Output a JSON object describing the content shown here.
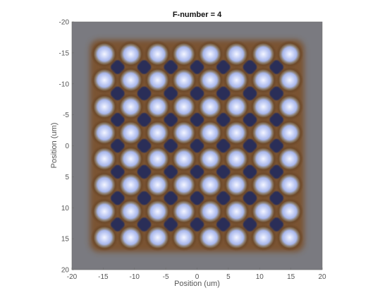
{
  "chart_data": {
    "type": "heatmap",
    "title": "F-number = 4",
    "xlabel": "Position (um)",
    "ylabel": "Position (um)",
    "xlim": [
      -20,
      20
    ],
    "ylim": [
      -20,
      20
    ],
    "y_direction": "reversed",
    "x_ticks": [
      "-20",
      "-15",
      "-10",
      "-5",
      "0",
      "5",
      "10",
      "15",
      "20"
    ],
    "y_ticks": [
      "-20",
      "-15",
      "-10",
      "-5",
      "0",
      "5",
      "10",
      "15",
      "20"
    ],
    "point_grid": {
      "rows": 8,
      "cols": 8,
      "x_centers": [
        -14.8,
        -10.6,
        -6.3,
        -2.1,
        2.1,
        6.3,
        10.6,
        14.8
      ],
      "y_centers": [
        -14.8,
        -10.6,
        -6.3,
        -2.1,
        2.1,
        6.3,
        10.6,
        14.8
      ]
    },
    "colors": {
      "background": "#7a7a80",
      "spot_center": "#f4f6ff",
      "spot_mid": "#b7c4f2",
      "spot_ring": "#7a5230",
      "gap": "#2c2f58"
    },
    "grid": false,
    "legend": "none"
  }
}
